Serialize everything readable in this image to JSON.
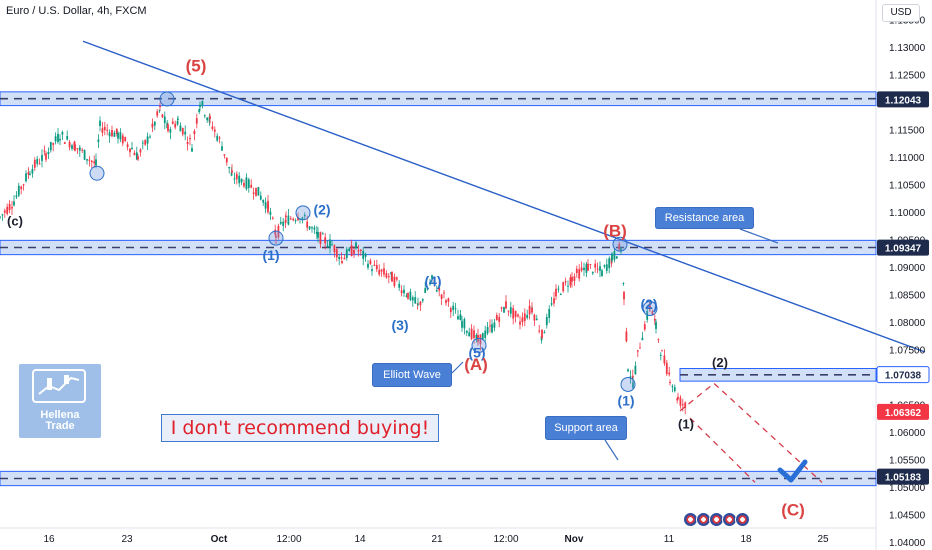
{
  "header": {
    "symbol_line": "Euro / U.S. Dollar, 4h, FXCM",
    "currency_button": "USD"
  },
  "logo": {
    "line1": "Hellena",
    "line2": "Trade"
  },
  "notice": "I don't recommend buying!",
  "callouts": {
    "resistance": "Resistance area",
    "elliott": "Elliott Wave",
    "support": "Support area"
  },
  "colors": {
    "blue": "#2962ff",
    "zone": "#d2e0f7",
    "red": "#d33b4a",
    "wave_blue": "#2c6fc9",
    "wave_red": "#d94343"
  },
  "chart_data": {
    "type": "candlestick",
    "instrument": "Euro / U.S. Dollar",
    "timeframe": "4h",
    "ylim": [
      1.0385,
      1.1385
    ],
    "y_ticks": [
      "1.13500",
      "1.13000",
      "1.12500",
      "1.11500",
      "1.11000",
      "1.10500",
      "1.10000",
      "1.09500",
      "1.09000",
      "1.08500",
      "1.08000",
      "1.07500",
      "1.06500",
      "1.06000",
      "1.05500",
      "1.05000",
      "1.04500",
      "1.04000"
    ],
    "x_ticks": [
      "16",
      "23",
      "Oct",
      "12:00",
      "14",
      "21",
      "12:00",
      "Nov",
      "11",
      "18",
      "25"
    ],
    "price_labels": [
      {
        "text": "1.12043",
        "value": 1.12043,
        "style": "dark"
      },
      {
        "text": "1.09347",
        "value": 1.09347,
        "style": "dark"
      },
      {
        "text": "1.07038",
        "value": 1.07038,
        "style": "outline"
      },
      {
        "text": "1.06362",
        "value": 1.06362,
        "style": "red"
      },
      {
        "text": "1.05183",
        "value": 1.05183,
        "style": "dark"
      }
    ],
    "zones": [
      {
        "name": "resistance-top",
        "from": 1.1193,
        "to": 1.1218
      },
      {
        "name": "resistance",
        "from": 1.0922,
        "to": 1.0948
      },
      {
        "name": "target",
        "from": 1.0692,
        "to": 1.0715
      },
      {
        "name": "support",
        "from": 1.0502,
        "to": 1.0528
      }
    ],
    "price_path": [
      [
        0,
        1.099
      ],
      [
        14,
        1.102
      ],
      [
        30,
        1.1075
      ],
      [
        46,
        1.1105
      ],
      [
        60,
        1.114
      ],
      [
        75,
        1.112
      ],
      [
        96,
        1.1085
      ],
      [
        100,
        1.1155
      ],
      [
        118,
        1.114
      ],
      [
        132,
        1.1115
      ],
      [
        138,
        1.11
      ],
      [
        150,
        1.114
      ],
      [
        160,
        1.1185
      ],
      [
        168,
        1.115
      ],
      [
        178,
        1.1165
      ],
      [
        192,
        1.112
      ],
      [
        200,
        1.12
      ],
      [
        210,
        1.1165
      ],
      [
        222,
        1.112
      ],
      [
        232,
        1.1065
      ],
      [
        244,
        1.1055
      ],
      [
        256,
        1.104
      ],
      [
        268,
        1.101
      ],
      [
        276,
        1.0958
      ],
      [
        286,
        1.0985
      ],
      [
        300,
        1.0995
      ],
      [
        318,
        1.0955
      ],
      [
        332,
        1.094
      ],
      [
        342,
        1.0915
      ],
      [
        356,
        1.0935
      ],
      [
        372,
        1.09
      ],
      [
        392,
        1.088
      ],
      [
        408,
        1.085
      ],
      [
        418,
        1.0828
      ],
      [
        432,
        1.0875
      ],
      [
        446,
        1.084
      ],
      [
        462,
        1.08
      ],
      [
        478,
        1.0765
      ],
      [
        492,
        1.079
      ],
      [
        506,
        1.083
      ],
      [
        520,
        1.08
      ],
      [
        532,
        1.0825
      ],
      [
        542,
        1.0775
      ],
      [
        556,
        1.085
      ],
      [
        572,
        1.088
      ],
      [
        588,
        1.09
      ],
      [
        602,
        1.089
      ],
      [
        612,
        1.0915
      ],
      [
        621,
        1.0935
      ],
      [
        624,
        1.085
      ],
      [
        628,
        1.072
      ],
      [
        633,
        1.069
      ],
      [
        640,
        1.076
      ],
      [
        650,
        1.083
      ],
      [
        656,
        1.079
      ],
      [
        662,
        1.074
      ],
      [
        670,
        1.07
      ],
      [
        678,
        1.066
      ],
      [
        686,
        1.0645
      ]
    ],
    "trendline": {
      "from": [
        83,
        1.131
      ],
      "to": [
        925,
        1.0745
      ]
    },
    "wave_labels": [
      {
        "text": "(5)",
        "x": 196,
        "y": 1.1255,
        "color": "red",
        "size": 17
      },
      {
        "text": "(c)",
        "x": 15,
        "y": 1.0975,
        "color": "dark",
        "size": 13
      },
      {
        "text": "(1)",
        "x": 271,
        "y": 1.0912,
        "color": "blue",
        "size": 14
      },
      {
        "text": "(2)",
        "x": 322,
        "y": 1.0995,
        "color": "blue",
        "size": 14
      },
      {
        "text": "(3)",
        "x": 400,
        "y": 1.0785,
        "color": "blue",
        "size": 14
      },
      {
        "text": "(4)",
        "x": 433,
        "y": 1.0865,
        "color": "blue",
        "size": 14
      },
      {
        "text": "(5)",
        "x": 477,
        "y": 1.0735,
        "color": "blue",
        "size": 14
      },
      {
        "text": "(A)",
        "x": 476,
        "y": 1.0712,
        "color": "red",
        "size": 17
      },
      {
        "text": "(B)",
        "x": 615,
        "y": 1.0955,
        "color": "red",
        "size": 17
      },
      {
        "text": "(2)",
        "x": 649,
        "y": 1.0823,
        "color": "blue",
        "size": 14
      },
      {
        "text": "(1)",
        "x": 626,
        "y": 1.0648,
        "color": "blue",
        "size": 14
      },
      {
        "text": "(2)",
        "x": 720,
        "y": 1.0718,
        "color": "dark",
        "size": 13
      },
      {
        "text": "(1)",
        "x": 686,
        "y": 1.0606,
        "color": "dark",
        "size": 13
      },
      {
        "text": "(C)",
        "x": 793,
        "y": 1.0448,
        "color": "red",
        "size": 17
      }
    ],
    "wave_markers": [
      [
        167,
        1.1205
      ],
      [
        97,
        1.107
      ],
      [
        276,
        1.0952
      ],
      [
        303,
        1.0998
      ],
      [
        479,
        1.0757
      ],
      [
        620,
        1.0941
      ],
      [
        628,
        1.0686
      ],
      [
        650,
        1.0824
      ]
    ],
    "projection": [
      [
        680,
        1.0638
      ],
      [
        714,
        1.0688
      ],
      [
        822,
        1.0508
      ]
    ],
    "projection_branch": [
      [
        690,
        1.0625
      ],
      [
        755,
        1.0508
      ]
    ]
  }
}
